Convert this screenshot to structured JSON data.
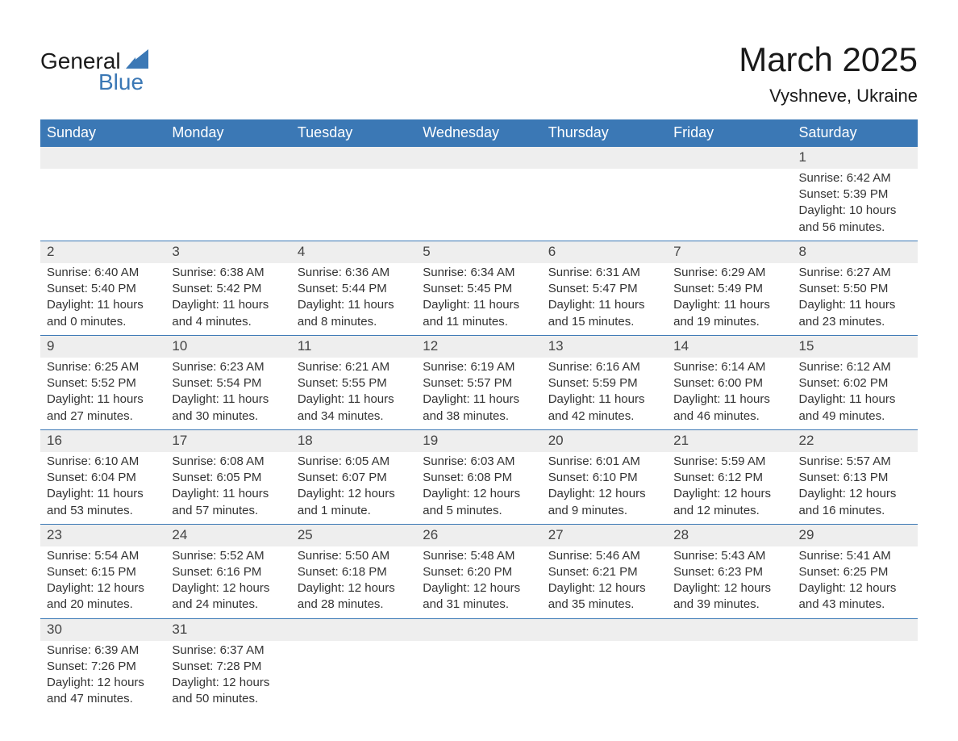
{
  "logo": {
    "word1": "General",
    "word2": "Blue",
    "color_text": "#1a1a1a",
    "color_blue": "#3b78b5"
  },
  "header": {
    "month_title": "March 2025",
    "location": "Vyshneve, Ukraine"
  },
  "style": {
    "header_bg": "#3b78b5",
    "header_fg": "#ffffff",
    "daynum_bg": "#eeeeee",
    "row_border": "#3b78b5",
    "body_text": "#333333",
    "page_bg": "#ffffff",
    "title_fontsize": 42,
    "location_fontsize": 22,
    "weekday_fontsize": 18,
    "daynum_fontsize": 17,
    "cell_fontsize": 15
  },
  "weekdays": [
    "Sunday",
    "Monday",
    "Tuesday",
    "Wednesday",
    "Thursday",
    "Friday",
    "Saturday"
  ],
  "weeks": [
    [
      null,
      null,
      null,
      null,
      null,
      null,
      {
        "day": "1",
        "sunrise": "Sunrise: 6:42 AM",
        "sunset": "Sunset: 5:39 PM",
        "daylight": "Daylight: 10 hours and 56 minutes."
      }
    ],
    [
      {
        "day": "2",
        "sunrise": "Sunrise: 6:40 AM",
        "sunset": "Sunset: 5:40 PM",
        "daylight": "Daylight: 11 hours and 0 minutes."
      },
      {
        "day": "3",
        "sunrise": "Sunrise: 6:38 AM",
        "sunset": "Sunset: 5:42 PM",
        "daylight": "Daylight: 11 hours and 4 minutes."
      },
      {
        "day": "4",
        "sunrise": "Sunrise: 6:36 AM",
        "sunset": "Sunset: 5:44 PM",
        "daylight": "Daylight: 11 hours and 8 minutes."
      },
      {
        "day": "5",
        "sunrise": "Sunrise: 6:34 AM",
        "sunset": "Sunset: 5:45 PM",
        "daylight": "Daylight: 11 hours and 11 minutes."
      },
      {
        "day": "6",
        "sunrise": "Sunrise: 6:31 AM",
        "sunset": "Sunset: 5:47 PM",
        "daylight": "Daylight: 11 hours and 15 minutes."
      },
      {
        "day": "7",
        "sunrise": "Sunrise: 6:29 AM",
        "sunset": "Sunset: 5:49 PM",
        "daylight": "Daylight: 11 hours and 19 minutes."
      },
      {
        "day": "8",
        "sunrise": "Sunrise: 6:27 AM",
        "sunset": "Sunset: 5:50 PM",
        "daylight": "Daylight: 11 hours and 23 minutes."
      }
    ],
    [
      {
        "day": "9",
        "sunrise": "Sunrise: 6:25 AM",
        "sunset": "Sunset: 5:52 PM",
        "daylight": "Daylight: 11 hours and 27 minutes."
      },
      {
        "day": "10",
        "sunrise": "Sunrise: 6:23 AM",
        "sunset": "Sunset: 5:54 PM",
        "daylight": "Daylight: 11 hours and 30 minutes."
      },
      {
        "day": "11",
        "sunrise": "Sunrise: 6:21 AM",
        "sunset": "Sunset: 5:55 PM",
        "daylight": "Daylight: 11 hours and 34 minutes."
      },
      {
        "day": "12",
        "sunrise": "Sunrise: 6:19 AM",
        "sunset": "Sunset: 5:57 PM",
        "daylight": "Daylight: 11 hours and 38 minutes."
      },
      {
        "day": "13",
        "sunrise": "Sunrise: 6:16 AM",
        "sunset": "Sunset: 5:59 PM",
        "daylight": "Daylight: 11 hours and 42 minutes."
      },
      {
        "day": "14",
        "sunrise": "Sunrise: 6:14 AM",
        "sunset": "Sunset: 6:00 PM",
        "daylight": "Daylight: 11 hours and 46 minutes."
      },
      {
        "day": "15",
        "sunrise": "Sunrise: 6:12 AM",
        "sunset": "Sunset: 6:02 PM",
        "daylight": "Daylight: 11 hours and 49 minutes."
      }
    ],
    [
      {
        "day": "16",
        "sunrise": "Sunrise: 6:10 AM",
        "sunset": "Sunset: 6:04 PM",
        "daylight": "Daylight: 11 hours and 53 minutes."
      },
      {
        "day": "17",
        "sunrise": "Sunrise: 6:08 AM",
        "sunset": "Sunset: 6:05 PM",
        "daylight": "Daylight: 11 hours and 57 minutes."
      },
      {
        "day": "18",
        "sunrise": "Sunrise: 6:05 AM",
        "sunset": "Sunset: 6:07 PM",
        "daylight": "Daylight: 12 hours and 1 minute."
      },
      {
        "day": "19",
        "sunrise": "Sunrise: 6:03 AM",
        "sunset": "Sunset: 6:08 PM",
        "daylight": "Daylight: 12 hours and 5 minutes."
      },
      {
        "day": "20",
        "sunrise": "Sunrise: 6:01 AM",
        "sunset": "Sunset: 6:10 PM",
        "daylight": "Daylight: 12 hours and 9 minutes."
      },
      {
        "day": "21",
        "sunrise": "Sunrise: 5:59 AM",
        "sunset": "Sunset: 6:12 PM",
        "daylight": "Daylight: 12 hours and 12 minutes."
      },
      {
        "day": "22",
        "sunrise": "Sunrise: 5:57 AM",
        "sunset": "Sunset: 6:13 PM",
        "daylight": "Daylight: 12 hours and 16 minutes."
      }
    ],
    [
      {
        "day": "23",
        "sunrise": "Sunrise: 5:54 AM",
        "sunset": "Sunset: 6:15 PM",
        "daylight": "Daylight: 12 hours and 20 minutes."
      },
      {
        "day": "24",
        "sunrise": "Sunrise: 5:52 AM",
        "sunset": "Sunset: 6:16 PM",
        "daylight": "Daylight: 12 hours and 24 minutes."
      },
      {
        "day": "25",
        "sunrise": "Sunrise: 5:50 AM",
        "sunset": "Sunset: 6:18 PM",
        "daylight": "Daylight: 12 hours and 28 minutes."
      },
      {
        "day": "26",
        "sunrise": "Sunrise: 5:48 AM",
        "sunset": "Sunset: 6:20 PM",
        "daylight": "Daylight: 12 hours and 31 minutes."
      },
      {
        "day": "27",
        "sunrise": "Sunrise: 5:46 AM",
        "sunset": "Sunset: 6:21 PM",
        "daylight": "Daylight: 12 hours and 35 minutes."
      },
      {
        "day": "28",
        "sunrise": "Sunrise: 5:43 AM",
        "sunset": "Sunset: 6:23 PM",
        "daylight": "Daylight: 12 hours and 39 minutes."
      },
      {
        "day": "29",
        "sunrise": "Sunrise: 5:41 AM",
        "sunset": "Sunset: 6:25 PM",
        "daylight": "Daylight: 12 hours and 43 minutes."
      }
    ],
    [
      {
        "day": "30",
        "sunrise": "Sunrise: 6:39 AM",
        "sunset": "Sunset: 7:26 PM",
        "daylight": "Daylight: 12 hours and 47 minutes."
      },
      {
        "day": "31",
        "sunrise": "Sunrise: 6:37 AM",
        "sunset": "Sunset: 7:28 PM",
        "daylight": "Daylight: 12 hours and 50 minutes."
      },
      null,
      null,
      null,
      null,
      null
    ]
  ]
}
